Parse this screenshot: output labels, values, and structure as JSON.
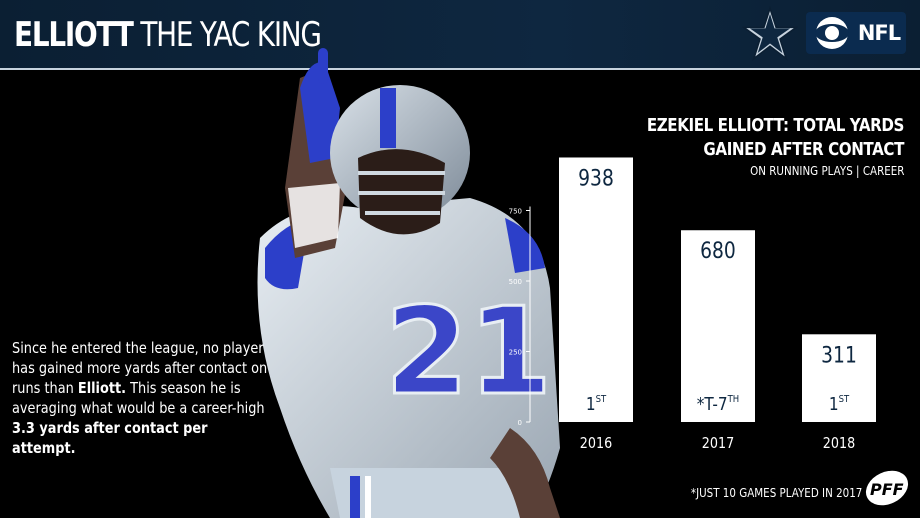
{
  "header": {
    "title_bold": "ELLIOTT",
    "title_rest": "THE YAC KING",
    "logo_text": "NFL"
  },
  "colors": {
    "header_bg": "#0e2740",
    "bar": "#ffffff",
    "bar_text": "#0e2740",
    "accent_blue": "#2c3fc9"
  },
  "icons": [
    "star-icon",
    "cbs-eye-icon",
    "pff-icon"
  ],
  "blurb": {
    "part1": "Since he entered the league, no player has gained more yards after contact on runs than ",
    "name": "Elliott.",
    "part2": " This season he is averaging what would be a career-high ",
    "highlight": "3.3 yards after contact per attempt."
  },
  "chart_data": {
    "type": "bar",
    "title": "EZEKIEL ELLIOTT: TOTAL YARDS GAINED AFTER CONTACT",
    "subtitle": "ON RUNNING PLAYS | CAREER",
    "categories": [
      "2016",
      "2017",
      "2018"
    ],
    "values": [
      938,
      680,
      311
    ],
    "value_labels": [
      "938",
      "680",
      "311"
    ],
    "ranks": [
      {
        "main": "1",
        "sup": "ST"
      },
      {
        "main": "*T-7",
        "sup": "TH"
      },
      {
        "main": "1",
        "sup": "ST"
      }
    ],
    "yticks": [
      0,
      250,
      500,
      750
    ],
    "ylim": [
      0,
      1000
    ],
    "grid": false
  },
  "footnote": "*JUST 10 GAMES PLAYED IN 2017"
}
